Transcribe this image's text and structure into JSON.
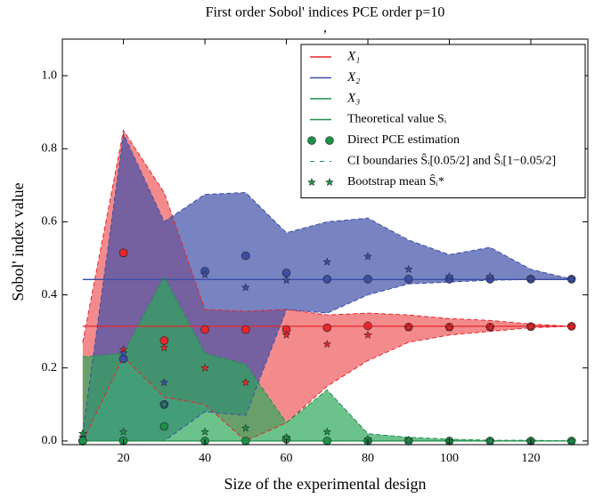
{
  "chart_data": {
    "type": "band-line",
    "title": "First order Sobol' indices  PCE order p=10",
    "subtitle": ",",
    "x_label": "Size of the experimental design",
    "y_label": "Sobol' index value",
    "x": [
      10,
      20,
      30,
      40,
      50,
      60,
      70,
      80,
      90,
      100,
      110,
      120,
      130
    ],
    "xlim": [
      5,
      134
    ],
    "ylim": [
      -0.01,
      1.1
    ],
    "xticks": [
      20,
      40,
      60,
      80,
      100,
      120
    ],
    "yticks": [
      {
        "value": 0,
        "label": "0.0"
      },
      {
        "value": 0.2,
        "label": "0.2"
      },
      {
        "value": 0.4,
        "label": "0.4"
      },
      {
        "value": 0.6,
        "label": "0.6"
      },
      {
        "value": 0.8,
        "label": "0.8"
      },
      {
        "value": 1,
        "label": "1.0"
      }
    ],
    "legend_position": "upper right",
    "legend": [
      "Theoretical value Sᵢ",
      "Direct PCE estimation",
      "CI boundaries Ŝᵢ[0.05/2] and Ŝᵢ[1−0.05/2]",
      "Bootstrap mean Ŝᵢ*"
    ],
    "series": [
      {
        "name": "X₁",
        "color": "#e8262a",
        "fill": "#ee5a5c",
        "theoretical": 0.314,
        "pce": [
          0.0,
          0.515,
          0.275,
          0.305,
          0.305,
          0.305,
          0.31,
          0.315,
          0.312,
          0.312,
          0.312,
          0.313,
          0.314
        ],
        "bootstrap": [
          0.02,
          0.25,
          0.255,
          0.2,
          0.16,
          0.29,
          0.265,
          0.29,
          0.31,
          0.31,
          0.31,
          0.313,
          0.314
        ],
        "ci_lower": [
          0.0,
          0.23,
          0.12,
          0.1,
          0.0,
          0.05,
          0.15,
          0.22,
          0.27,
          0.29,
          0.3,
          0.31,
          0.314
        ],
        "ci_upper": [
          0.27,
          0.85,
          0.68,
          0.36,
          0.355,
          0.36,
          0.345,
          0.35,
          0.345,
          0.335,
          0.33,
          0.32,
          0.314
        ]
      },
      {
        "name": "X₂",
        "color": "#3b4ea6",
        "fill": "#3e4fa8",
        "theoretical": 0.442,
        "pce": [
          0.0,
          0.225,
          0.1,
          0.465,
          0.507,
          0.46,
          0.443,
          0.443,
          0.443,
          0.443,
          0.443,
          0.443,
          0.443
        ],
        "bootstrap": [
          0.01,
          0.24,
          0.16,
          0.455,
          0.42,
          0.44,
          0.49,
          0.505,
          0.47,
          0.45,
          0.45,
          0.445,
          0.443
        ],
        "ci_lower": [
          0.0,
          0.0,
          0.0,
          0.08,
          0.07,
          0.36,
          0.35,
          0.4,
          0.43,
          0.435,
          0.44,
          0.442,
          0.443
        ],
        "ci_upper": [
          0.02,
          0.84,
          0.6,
          0.675,
          0.68,
          0.57,
          0.6,
          0.61,
          0.55,
          0.51,
          0.53,
          0.47,
          0.443
        ]
      },
      {
        "name": "X₃",
        "color": "#1f8f4a",
        "fill": "#2ea85a",
        "theoretical": 0.0,
        "pce": [
          0.0,
          0.0,
          0.04,
          0.0,
          0.0,
          0.005,
          0.0,
          0.0,
          0.0,
          0.0,
          0.0,
          0.0,
          0.0
        ],
        "bootstrap": [
          0.02,
          0.025,
          0.1,
          0.025,
          0.035,
          0.01,
          0.025,
          0.005,
          0.003,
          0.0,
          0.0,
          0.0,
          0.0
        ],
        "ci_lower": [
          0.0,
          0.0,
          0.0,
          0.0,
          0.0,
          0.0,
          0.0,
          0.0,
          0.0,
          0.0,
          0.0,
          0.0,
          0.0
        ],
        "ci_upper": [
          0.23,
          0.24,
          0.45,
          0.24,
          0.21,
          0.05,
          0.14,
          0.02,
          0.01,
          0.005,
          0.002,
          0.002,
          0.0
        ]
      }
    ]
  }
}
